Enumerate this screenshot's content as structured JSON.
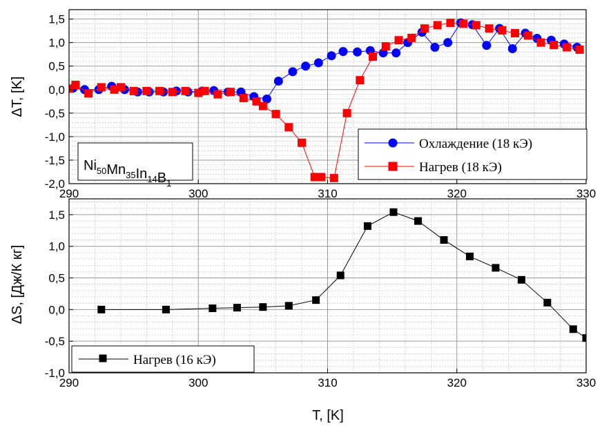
{
  "chart_data": [
    {
      "type": "line",
      "ylabel": "ΔT, [K]",
      "xlim": [
        290,
        330
      ],
      "ylim": [
        -2.0,
        1.7
      ],
      "x_ticks": [
        "290",
        "300",
        "310",
        "320",
        "330"
      ],
      "y_ticks": [
        "1,5",
        "1,0",
        "0,5",
        "0,0",
        "-0,5",
        "-1,0",
        "-1,5",
        "-2,0"
      ],
      "grid": true,
      "legend_position": "bottom-right",
      "annotation": {
        "base": [
          "Ni",
          "Mn",
          "In",
          "B"
        ],
        "sub": [
          "50",
          "35",
          "14",
          "1"
        ]
      },
      "series": [
        {
          "name": "Охлаждение (18 кЭ)",
          "color": "#0000ff",
          "marker": "circle",
          "x": [
            290.3,
            291.2,
            292.3,
            293.3,
            294.3,
            295.3,
            296.2,
            297.3,
            298.3,
            299.2,
            300.3,
            301.2,
            302.3,
            303.3,
            304.3,
            305.3,
            306.2,
            307.3,
            308.3,
            309.3,
            310.3,
            311.2,
            312.3,
            313.3,
            314.3,
            315.3,
            316.2,
            317.3,
            318.3,
            319.3,
            320.3,
            321.2,
            322.3,
            323.3,
            324.3,
            325.3,
            326.2,
            327.3,
            328.3,
            329.3
          ],
          "y": [
            0.03,
            0.0,
            0.0,
            0.07,
            0.0,
            -0.05,
            -0.05,
            -0.05,
            -0.03,
            -0.05,
            -0.03,
            -0.02,
            -0.05,
            -0.05,
            -0.15,
            -0.2,
            0.18,
            0.38,
            0.5,
            0.57,
            0.72,
            0.81,
            0.8,
            0.83,
            0.78,
            0.78,
            1.0,
            1.22,
            0.9,
            1.0,
            1.42,
            1.38,
            0.94,
            1.3,
            0.87,
            1.2,
            1.09,
            1.05,
            0.97,
            0.9
          ]
        },
        {
          "name": "Нагрев (18 кЭ)",
          "color": "#ff0000",
          "marker": "square",
          "x": [
            290.0,
            290.5,
            291.5,
            292.5,
            293.5,
            294.0,
            295.0,
            296.0,
            297.0,
            298.0,
            299.0,
            300.0,
            300.5,
            301.5,
            302.5,
            303.5,
            304.5,
            305.0,
            306.0,
            307.0,
            308.0,
            309.0,
            309.5,
            310.5,
            311.5,
            312.5,
            313.5,
            314.5,
            315.5,
            316.5,
            317.5,
            318.5,
            319.5,
            320.5,
            321.5,
            322.5,
            323.5,
            324.5,
            325.5,
            326.5,
            327.5,
            328.5,
            329.5
          ],
          "y": [
            0.02,
            0.1,
            -0.08,
            0.05,
            0.0,
            0.05,
            -0.03,
            -0.03,
            -0.03,
            -0.05,
            -0.03,
            -0.07,
            -0.03,
            -0.1,
            -0.05,
            -0.18,
            -0.25,
            -0.35,
            -0.52,
            -0.8,
            -1.13,
            -1.86,
            -1.86,
            -1.88,
            -0.5,
            0.2,
            0.7,
            0.92,
            1.05,
            1.1,
            1.3,
            1.37,
            1.42,
            1.4,
            1.37,
            1.3,
            1.26,
            1.2,
            1.15,
            1.0,
            0.95,
            0.9,
            0.85
          ]
        }
      ]
    },
    {
      "type": "line",
      "xlabel": "T, [K]",
      "ylabel": "ΔS, [Дж/К кг]",
      "xlim": [
        290,
        330
      ],
      "ylim": [
        -1.0,
        1.75
      ],
      "x_ticks": [
        "290",
        "300",
        "310",
        "320",
        "330"
      ],
      "y_ticks": [
        "1,5",
        "1,0",
        "0,5",
        "0,0",
        "-0,5",
        "-1,0"
      ],
      "grid": true,
      "legend_position": "bottom-left",
      "series": [
        {
          "name": "Нагрев (16 кЭ)",
          "color": "#000000",
          "marker": "square",
          "x": [
            292.5,
            297.5,
            301.1,
            303.0,
            305.0,
            307.0,
            309.1,
            311.0,
            313.1,
            315.1,
            317.0,
            319.0,
            321.0,
            323.0,
            325.0,
            327.0,
            329.0,
            330.0
          ],
          "y": [
            0.0,
            0.0,
            0.02,
            0.03,
            0.04,
            0.06,
            0.15,
            0.54,
            1.32,
            1.54,
            1.4,
            1.1,
            0.84,
            0.66,
            0.47,
            0.11,
            -0.31,
            -0.45
          ]
        }
      ]
    }
  ]
}
